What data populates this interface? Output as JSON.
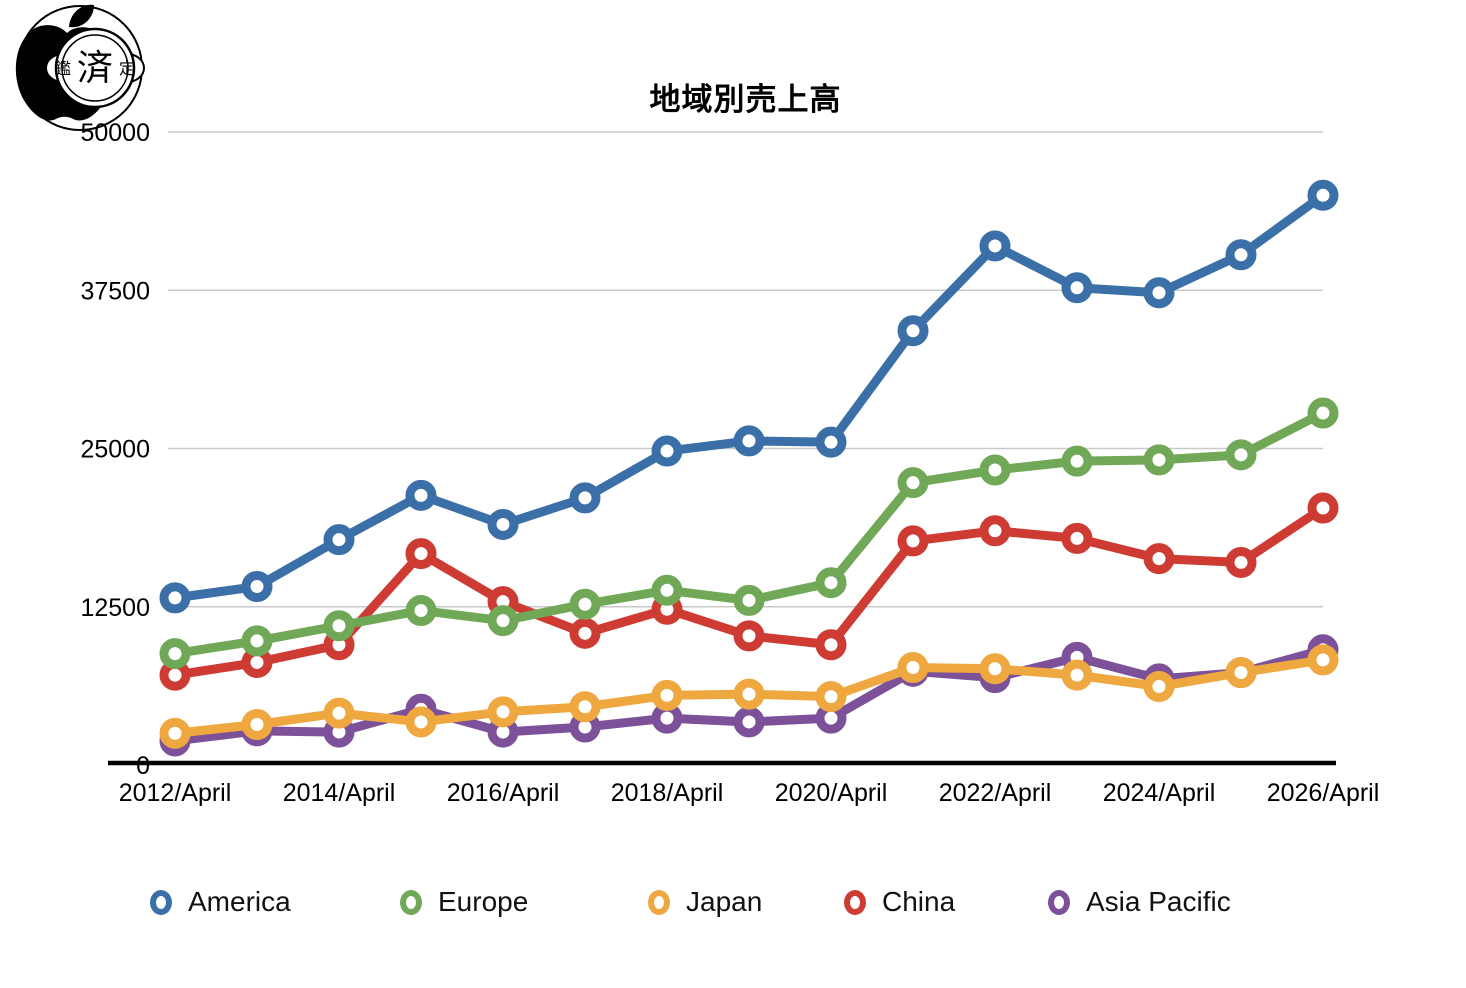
{
  "watermark": {
    "stamp_left": "鑑",
    "stamp_center": "済",
    "stamp_right": "定"
  },
  "title": "地域別売上高",
  "y_axis": {
    "tick_labels": [
      "50000",
      "37500",
      "25000",
      "12500",
      "0"
    ]
  },
  "x_axis": {
    "tick_labels": [
      "2012/April",
      "2014/April",
      "2016/April",
      "2018/April",
      "2020/April",
      "2022/April",
      "2024/April",
      "2026/April"
    ]
  },
  "legend": [
    "America",
    "Europe",
    "Japan",
    "China",
    "Asia Pacific"
  ],
  "chart_data": {
    "type": "line",
    "title": "地域別売上高",
    "x": [
      "2012/April",
      "2013/April",
      "2014/April",
      "2015/April",
      "2016/April",
      "2017/April",
      "2018/April",
      "2019/April",
      "2020/April",
      "2021/April",
      "2022/April",
      "2023/April",
      "2024/April",
      "2025/April",
      "2026/April"
    ],
    "x_tick_labels": [
      "2012/April",
      "2014/April",
      "2016/April",
      "2018/April",
      "2020/April",
      "2022/April",
      "2024/April",
      "2026/April"
    ],
    "xlabel": "",
    "ylabel": "",
    "ylim": [
      0,
      50000
    ],
    "y_ticks": [
      0,
      12500,
      25000,
      37500,
      50000
    ],
    "grid": true,
    "legend_position": "bottom",
    "series": [
      {
        "name": "America",
        "color": "#3A6FA8",
        "values": [
          13200,
          14100,
          17800,
          21300,
          19000,
          21100,
          24800,
          25600,
          25500,
          34300,
          41000,
          37700,
          37300,
          40300,
          45000
        ]
      },
      {
        "name": "Europe",
        "color": "#71A857",
        "values": [
          8800,
          9800,
          11000,
          12200,
          11400,
          12700,
          13800,
          13000,
          14400,
          22300,
          23300,
          24000,
          24100,
          24500,
          27800
        ]
      },
      {
        "name": "Japan",
        "color": "#EEA83F",
        "values": [
          2500,
          3200,
          4100,
          3400,
          4200,
          4600,
          5500,
          5600,
          5400,
          7700,
          7600,
          7100,
          6200,
          7300,
          8300
        ]
      },
      {
        "name": "China",
        "color": "#CE3B32",
        "values": [
          7100,
          8100,
          9500,
          16700,
          12900,
          10400,
          12300,
          10200,
          9500,
          17700,
          18500,
          17900,
          16300,
          16000,
          20300
        ]
      },
      {
        "name": "Asia Pacific",
        "color": "#7C5199",
        "values": [
          1900,
          2700,
          2600,
          4400,
          2600,
          3000,
          3700,
          3400,
          3700,
          7400,
          6900,
          8500,
          6800,
          7300,
          9100
        ]
      }
    ]
  }
}
